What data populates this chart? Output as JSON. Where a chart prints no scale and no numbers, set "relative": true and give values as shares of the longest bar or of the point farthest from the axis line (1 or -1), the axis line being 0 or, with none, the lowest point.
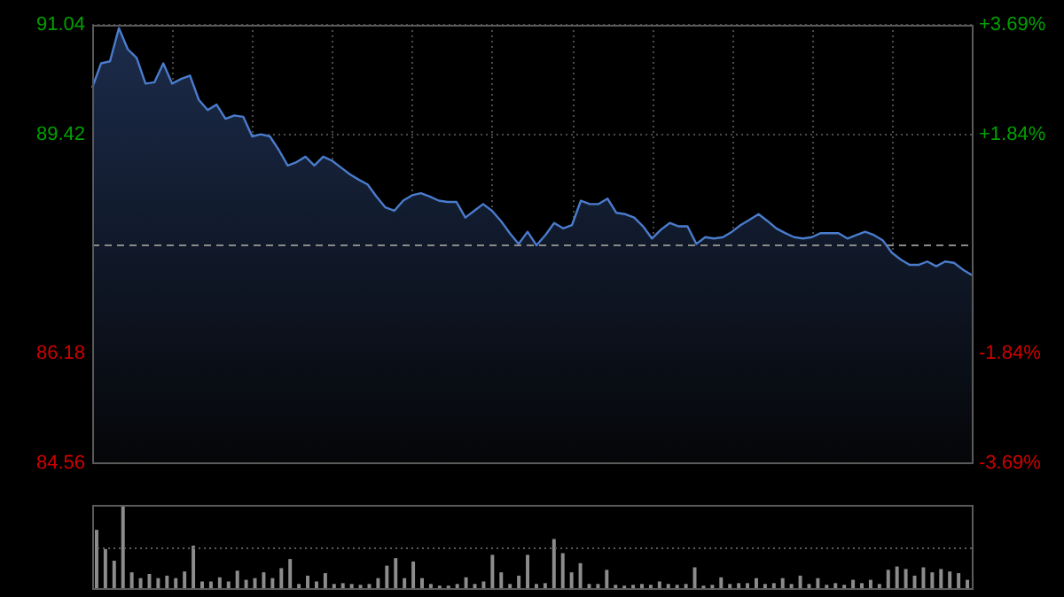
{
  "chart_data": [
    {
      "type": "area",
      "marker": "none",
      "grid": true,
      "color": "#4a7ccc",
      "categories": [
        null,
        null,
        null,
        null,
        null,
        null,
        null,
        null,
        null,
        null,
        null,
        null,
        null,
        null,
        null,
        null,
        null,
        null,
        null,
        null,
        null,
        null,
        null,
        null,
        null,
        null,
        null,
        null,
        null,
        null,
        null,
        null,
        null,
        null,
        null,
        null,
        null,
        null,
        null,
        null,
        null,
        null,
        null,
        null,
        null,
        null,
        null,
        null,
        null,
        null,
        null,
        null,
        null,
        null,
        null,
        null,
        null,
        null,
        null,
        null,
        null,
        null,
        null,
        null,
        null,
        null,
        null,
        null,
        null,
        null,
        null,
        null,
        null,
        null,
        null,
        null,
        null,
        null,
        null,
        null,
        null,
        null,
        null,
        null,
        null,
        null,
        null,
        null,
        null,
        null,
        null,
        null,
        null,
        null,
        null,
        null,
        null,
        null,
        null,
        null
      ],
      "values": [
        90.11,
        90.47,
        90.5,
        90.99,
        90.68,
        90.55,
        90.17,
        90.19,
        90.47,
        90.17,
        90.24,
        90.29,
        89.93,
        89.78,
        89.86,
        89.65,
        89.7,
        89.68,
        89.39,
        89.42,
        89.39,
        89.19,
        88.96,
        89.01,
        89.09,
        88.96,
        89.09,
        89.03,
        88.93,
        88.83,
        88.75,
        88.68,
        88.5,
        88.34,
        88.29,
        88.44,
        88.52,
        88.55,
        88.5,
        88.44,
        88.42,
        88.42,
        88.19,
        88.29,
        88.39,
        88.29,
        88.14,
        87.96,
        87.8,
        87.98,
        87.78,
        87.93,
        88.11,
        88.03,
        88.08,
        88.44,
        88.39,
        88.39,
        88.47,
        88.26,
        88.24,
        88.19,
        88.06,
        87.88,
        88.01,
        88.11,
        88.06,
        88.06,
        87.8,
        87.9,
        87.88,
        87.9,
        87.98,
        88.08,
        88.16,
        88.24,
        88.14,
        88.03,
        87.96,
        87.9,
        87.88,
        87.9,
        87.96,
        87.96,
        87.96,
        87.88,
        87.93,
        87.98,
        87.93,
        87.85,
        87.67,
        87.57,
        87.49,
        87.49,
        87.54,
        87.47,
        87.54,
        87.52,
        87.42,
        87.34
      ],
      "ylim": [
        84.56,
        91.04
      ],
      "yticks": [
        84.56,
        86.18,
        89.42,
        91.04
      ],
      "y2lim": [
        -3.69,
        3.69
      ],
      "y2ticks": [
        {
          "value": -3.69,
          "label": "-3.69%"
        },
        {
          "value": -1.84,
          "label": "-1.84%"
        },
        {
          "value": 1.84,
          "label": "+1.84%"
        },
        {
          "value": 3.69,
          "label": "+3.69%"
        }
      ],
      "ref_lines": [
        {
          "axis": "y",
          "value": 87.8,
          "color": "#8a8a8a",
          "line_style": "dashed"
        }
      ]
    },
    {
      "type": "bar",
      "relative": true,
      "color": "#8c8c8c",
      "ref_lines": [
        {
          "axis": "y",
          "value": 0.5,
          "color": "#5a5a5a",
          "line_style": "dotted"
        }
      ],
      "categories": [
        null,
        null,
        null,
        null,
        null,
        null,
        null,
        null,
        null,
        null,
        null,
        null,
        null,
        null,
        null,
        null,
        null,
        null,
        null,
        null,
        null,
        null,
        null,
        null,
        null,
        null,
        null,
        null,
        null,
        null,
        null,
        null,
        null,
        null,
        null,
        null,
        null,
        null,
        null,
        null,
        null,
        null,
        null,
        null,
        null,
        null,
        null,
        null,
        null,
        null,
        null,
        null,
        null,
        null,
        null,
        null,
        null,
        null,
        null,
        null,
        null,
        null,
        null,
        null,
        null,
        null,
        null,
        null,
        null,
        null,
        null,
        null,
        null,
        null,
        null,
        null,
        null,
        null,
        null,
        null,
        null,
        null,
        null,
        null,
        null,
        null,
        null,
        null,
        null,
        null,
        null,
        null,
        null,
        null,
        null,
        null,
        null,
        null,
        null,
        null
      ],
      "values": [
        0.7,
        0.47,
        0.33,
        1,
        0.19,
        0.12,
        0.17,
        0.12,
        0.15,
        0.12,
        0.2,
        0.51,
        0.08,
        0.08,
        0.13,
        0.08,
        0.21,
        0.1,
        0.12,
        0.19,
        0.12,
        0.24,
        0.35,
        0.05,
        0.15,
        0.08,
        0.18,
        0.05,
        0.06,
        0.05,
        0.04,
        0.05,
        0.12,
        0.27,
        0.36,
        0.12,
        0.32,
        0.12,
        0.05,
        0.03,
        0.03,
        0.05,
        0.13,
        0.05,
        0.08,
        0.4,
        0.19,
        0.05,
        0.15,
        0.4,
        0.05,
        0.06,
        0.59,
        0.42,
        0.19,
        0.3,
        0.05,
        0.05,
        0.22,
        0.04,
        0.03,
        0.04,
        0.05,
        0.04,
        0.08,
        0.05,
        0.04,
        0.05,
        0.25,
        0.03,
        0.04,
        0.13,
        0.05,
        0.06,
        0.06,
        0.12,
        0.05,
        0.06,
        0.12,
        0.05,
        0.15,
        0.05,
        0.12,
        0.04,
        0.06,
        0.04,
        0.1,
        0.06,
        0.1,
        0.05,
        0.22,
        0.26,
        0.23,
        0.15,
        0.25,
        0.19,
        0.23,
        0.2,
        0.18,
        0.1
      ]
    }
  ]
}
